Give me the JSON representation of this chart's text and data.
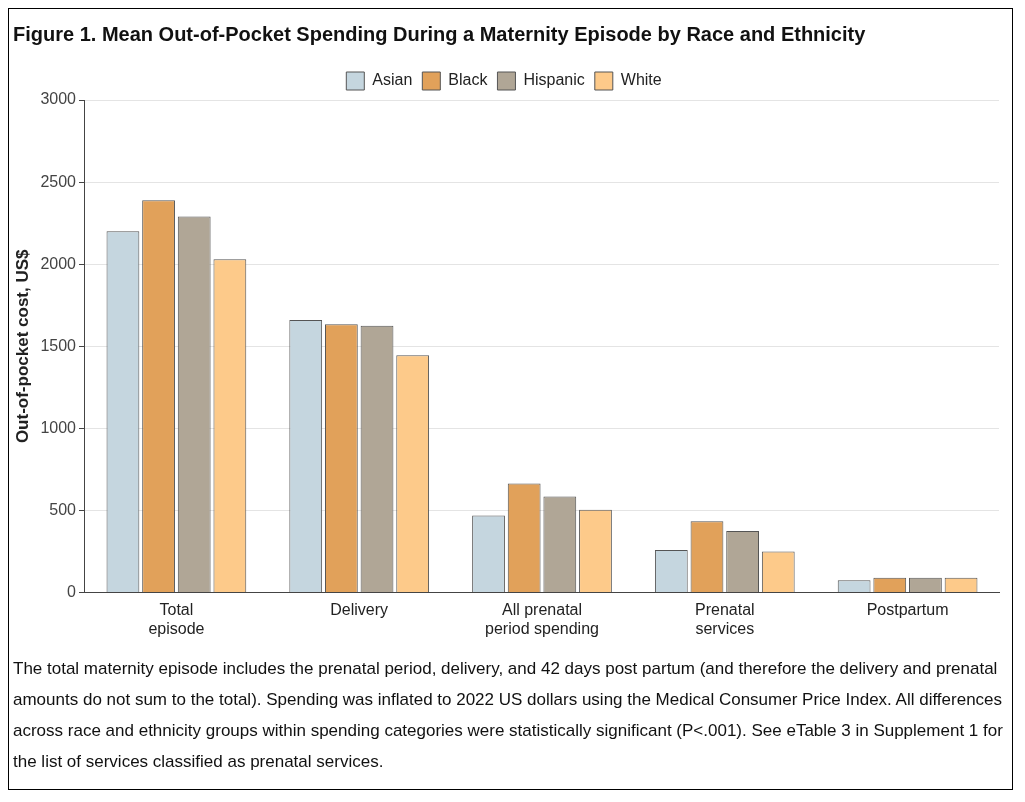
{
  "chart_data": {
    "type": "bar",
    "title": "Figure 1.  Mean Out-of-Pocket Spending During a Maternity Episode by Race and Ethnicity",
    "ylabel": "Out-of-pocket cost, US$",
    "categories": [
      "Total episode",
      "Delivery",
      "All prenatal period spending",
      "Prenatal services",
      "Postpartum"
    ],
    "series": [
      {
        "name": "Asian",
        "color": "#c5d6df",
        "values": [
          2200,
          1660,
          470,
          260,
          75
        ]
      },
      {
        "name": "Black",
        "color": "#e1a15a",
        "values": [
          2390,
          1635,
          665,
          435,
          90
        ]
      },
      {
        "name": "Hispanic",
        "color": "#b0a696",
        "values": [
          2290,
          1625,
          585,
          375,
          90
        ]
      },
      {
        "name": "White",
        "color": "#fdca8a",
        "values": [
          2030,
          1445,
          505,
          250,
          90
        ]
      }
    ],
    "ylim": [
      0,
      3000
    ],
    "yticks": [
      0,
      500,
      1000,
      1500,
      2000,
      2500,
      3000
    ],
    "grid": "y",
    "legend": "top",
    "annotations": [
      "The total maternity episode includes the prenatal period, delivery, and 42 days post partum (and therefore the delivery and prenatal amounts do not sum to the total). Spending was inflated to 2022 US dollars using the Medical Consumer Price Index. All differences across race and ethnicity groups within spending categories were statistically significant (P<.001). See eTable 3 in Supplement 1 for the list of services classified as prenatal services."
    ]
  }
}
